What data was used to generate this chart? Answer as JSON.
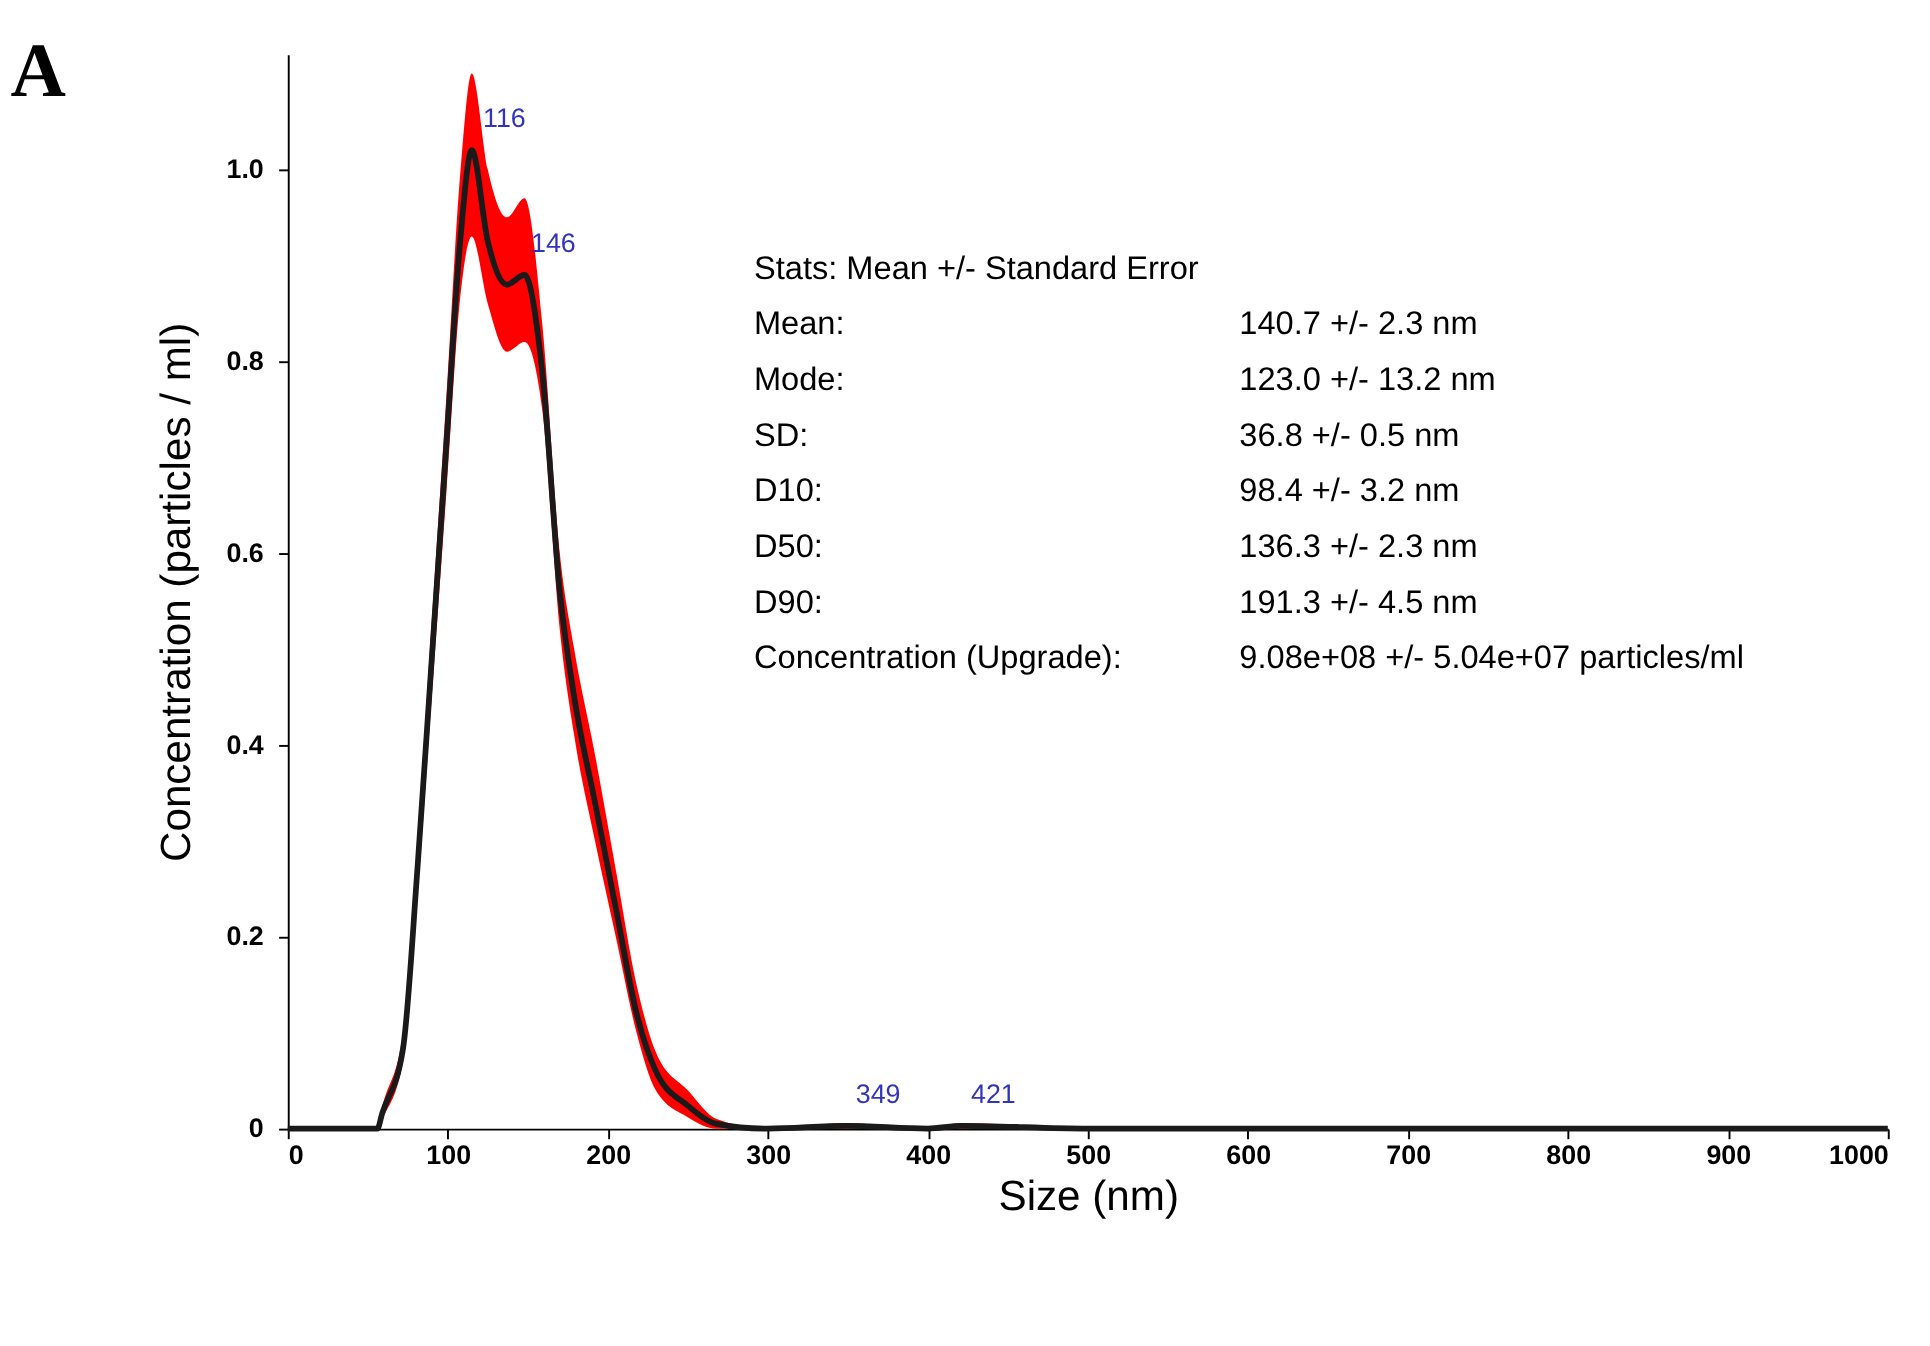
{
  "chart_data": {
    "type": "line",
    "title": "A",
    "xlabel": "Size (nm)",
    "ylabel": "Concentration (particles / ml)",
    "x": [
      0,
      56,
      59,
      72,
      81,
      90,
      99,
      108,
      115,
      125,
      137,
      148,
      159,
      170,
      179,
      192,
      205,
      218,
      230,
      250,
      268,
      300,
      349,
      400,
      421,
      500,
      600,
      700,
      800,
      900,
      1000
    ],
    "series": [
      {
        "color": "#1a1a1a",
        "values": [
          0,
          0,
          0.016,
          0.083,
          0.27,
          0.49,
          0.71,
          0.93,
          1.02,
          0.925,
          0.88,
          0.89,
          0.79,
          0.56,
          0.45,
          0.34,
          0.23,
          0.12,
          0.06,
          0.024,
          0.005,
          0,
          0.003,
          0,
          0.003,
          0,
          0,
          0,
          0,
          0,
          0
        ],
        "lower": [
          0,
          0,
          0.01,
          0.07,
          0.24,
          0.45,
          0.66,
          0.87,
          0.93,
          0.86,
          0.81,
          0.82,
          0.75,
          0.52,
          0.41,
          0.3,
          0.2,
          0.1,
          0.04,
          0.012,
          0,
          0,
          0,
          0,
          0,
          0,
          0,
          0,
          0,
          0,
          0
        ],
        "upper": [
          0,
          0,
          0.022,
          0.1,
          0.3,
          0.53,
          0.76,
          1.0,
          1.1,
          1.0,
          0.95,
          0.97,
          0.84,
          0.6,
          0.5,
          0.39,
          0.27,
          0.15,
          0.08,
          0.04,
          0.01,
          0,
          0.006,
          0,
          0.006,
          0,
          0,
          0,
          0,
          0,
          0
        ]
      }
    ],
    "xlim": [
      0,
      1000
    ],
    "xticks": [
      0,
      100,
      200,
      300,
      400,
      500,
      600,
      700,
      800,
      900,
      1000
    ],
    "ylim": [
      0,
      1.12
    ],
    "yticks": [
      0,
      0.2,
      0.4,
      0.6,
      0.8,
      {
        "value": 1,
        "label": "1.0"
      }
    ],
    "grid": false,
    "marker": "none",
    "line_style": "solid",
    "annotations": [
      {
        "text": "116",
        "x": 116,
        "y": 1.02
      },
      {
        "text": "146",
        "x": 146,
        "y": 0.89
      },
      {
        "text": "349",
        "x": 349,
        "y": 0.003
      },
      {
        "text": "421",
        "x": 421,
        "y": 0.003
      },
      "Stats: Mean +/- Standard Error",
      "Mean:",
      "140.7 +/- 2.3 nm",
      "Mode:",
      "123.0 +/- 13.2 nm",
      "SD:",
      "36.8 +/- 0.5 nm",
      "D10:",
      "98.4 +/- 3.2 nm",
      "D50:",
      "136.3 +/- 2.3 nm",
      "D90:",
      "191.3 +/- 4.5 nm",
      "Concentration (Upgrade):",
      "9.08e+08 +/- 5.04e+07 particles/ml"
    ]
  }
}
